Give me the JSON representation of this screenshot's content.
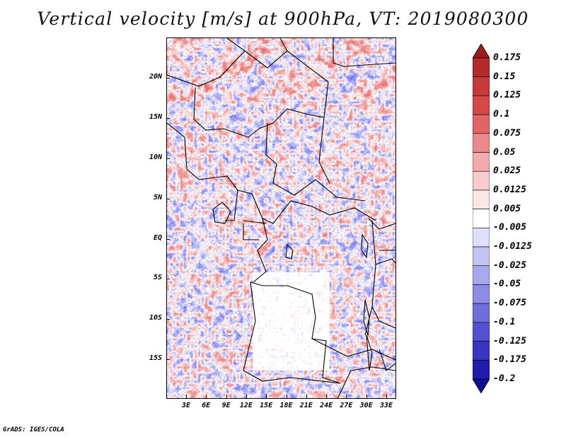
{
  "title": "Vertical velocity [m/s] at 900hPa, VT: 2019080300",
  "footer": "GrADS: IGES/COLA",
  "map": {
    "lat_ticks": [
      "20N",
      "15N",
      "10N",
      "5N",
      "EQ",
      "5S",
      "10S",
      "15S"
    ],
    "lon_ticks": [
      "3E",
      "6E",
      "9E",
      "12E",
      "15E",
      "18E",
      "21E",
      "24E",
      "27E",
      "30E",
      "33E"
    ]
  },
  "colorbar": {
    "labels": [
      "0.175",
      "0.15",
      "0.125",
      "0.1",
      "0.075",
      "0.05",
      "0.025",
      "0.0125",
      "0.005",
      "-0.005",
      "-0.0125",
      "-0.025",
      "-0.05",
      "-0.075",
      "-0.1",
      "-0.125",
      "-0.175",
      "-0.2"
    ],
    "colors": [
      "#9c1c1c",
      "#b32a2a",
      "#c83a3a",
      "#d84848",
      "#e26565",
      "#ea8a8a",
      "#f2aaaa",
      "#f8cccc",
      "#fce6e6",
      "#ffffff",
      "#e0e0fb",
      "#c4c4f4",
      "#a8a8ee",
      "#8c8ce6",
      "#6e6edc",
      "#5252d0",
      "#3636c2",
      "#1e1eae",
      "#0e0e90"
    ]
  }
}
